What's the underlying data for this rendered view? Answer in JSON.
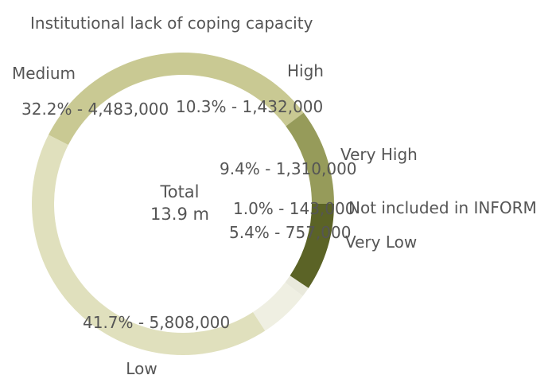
{
  "chart_data": {
    "type": "pie",
    "subtype": "donut",
    "title": "Institutional lack of coping capacity",
    "center": {
      "line1": "Total",
      "line2": "13.9 m"
    },
    "slices": [
      {
        "category": "Very High",
        "value_label": "9.4% - 1,310,000",
        "percent": 9.4,
        "value": 1310000,
        "color": "#5b6326"
      },
      {
        "category": "Not included in INFORM",
        "value_label": "1.0% - 143,000",
        "percent": 1.0,
        "value": 143000,
        "color": "#e9e9dc"
      },
      {
        "category": "Very Low",
        "value_label": "5.4% - 757,000",
        "percent": 5.4,
        "value": 757000,
        "color": "#efefe2"
      },
      {
        "category": "Low",
        "value_label": "41.7% - 5,808,000",
        "percent": 41.7,
        "value": 5808000,
        "color": "#e0e0bd"
      },
      {
        "category": "Medium",
        "value_label": "32.2% - 4,483,000",
        "percent": 32.2,
        "value": 4483000,
        "color": "#c9c993"
      },
      {
        "category": "High",
        "value_label": "10.3% - 1,432,000",
        "percent": 10.3,
        "value": 1432000,
        "color": "#969b5a"
      }
    ],
    "legend": "none"
  }
}
